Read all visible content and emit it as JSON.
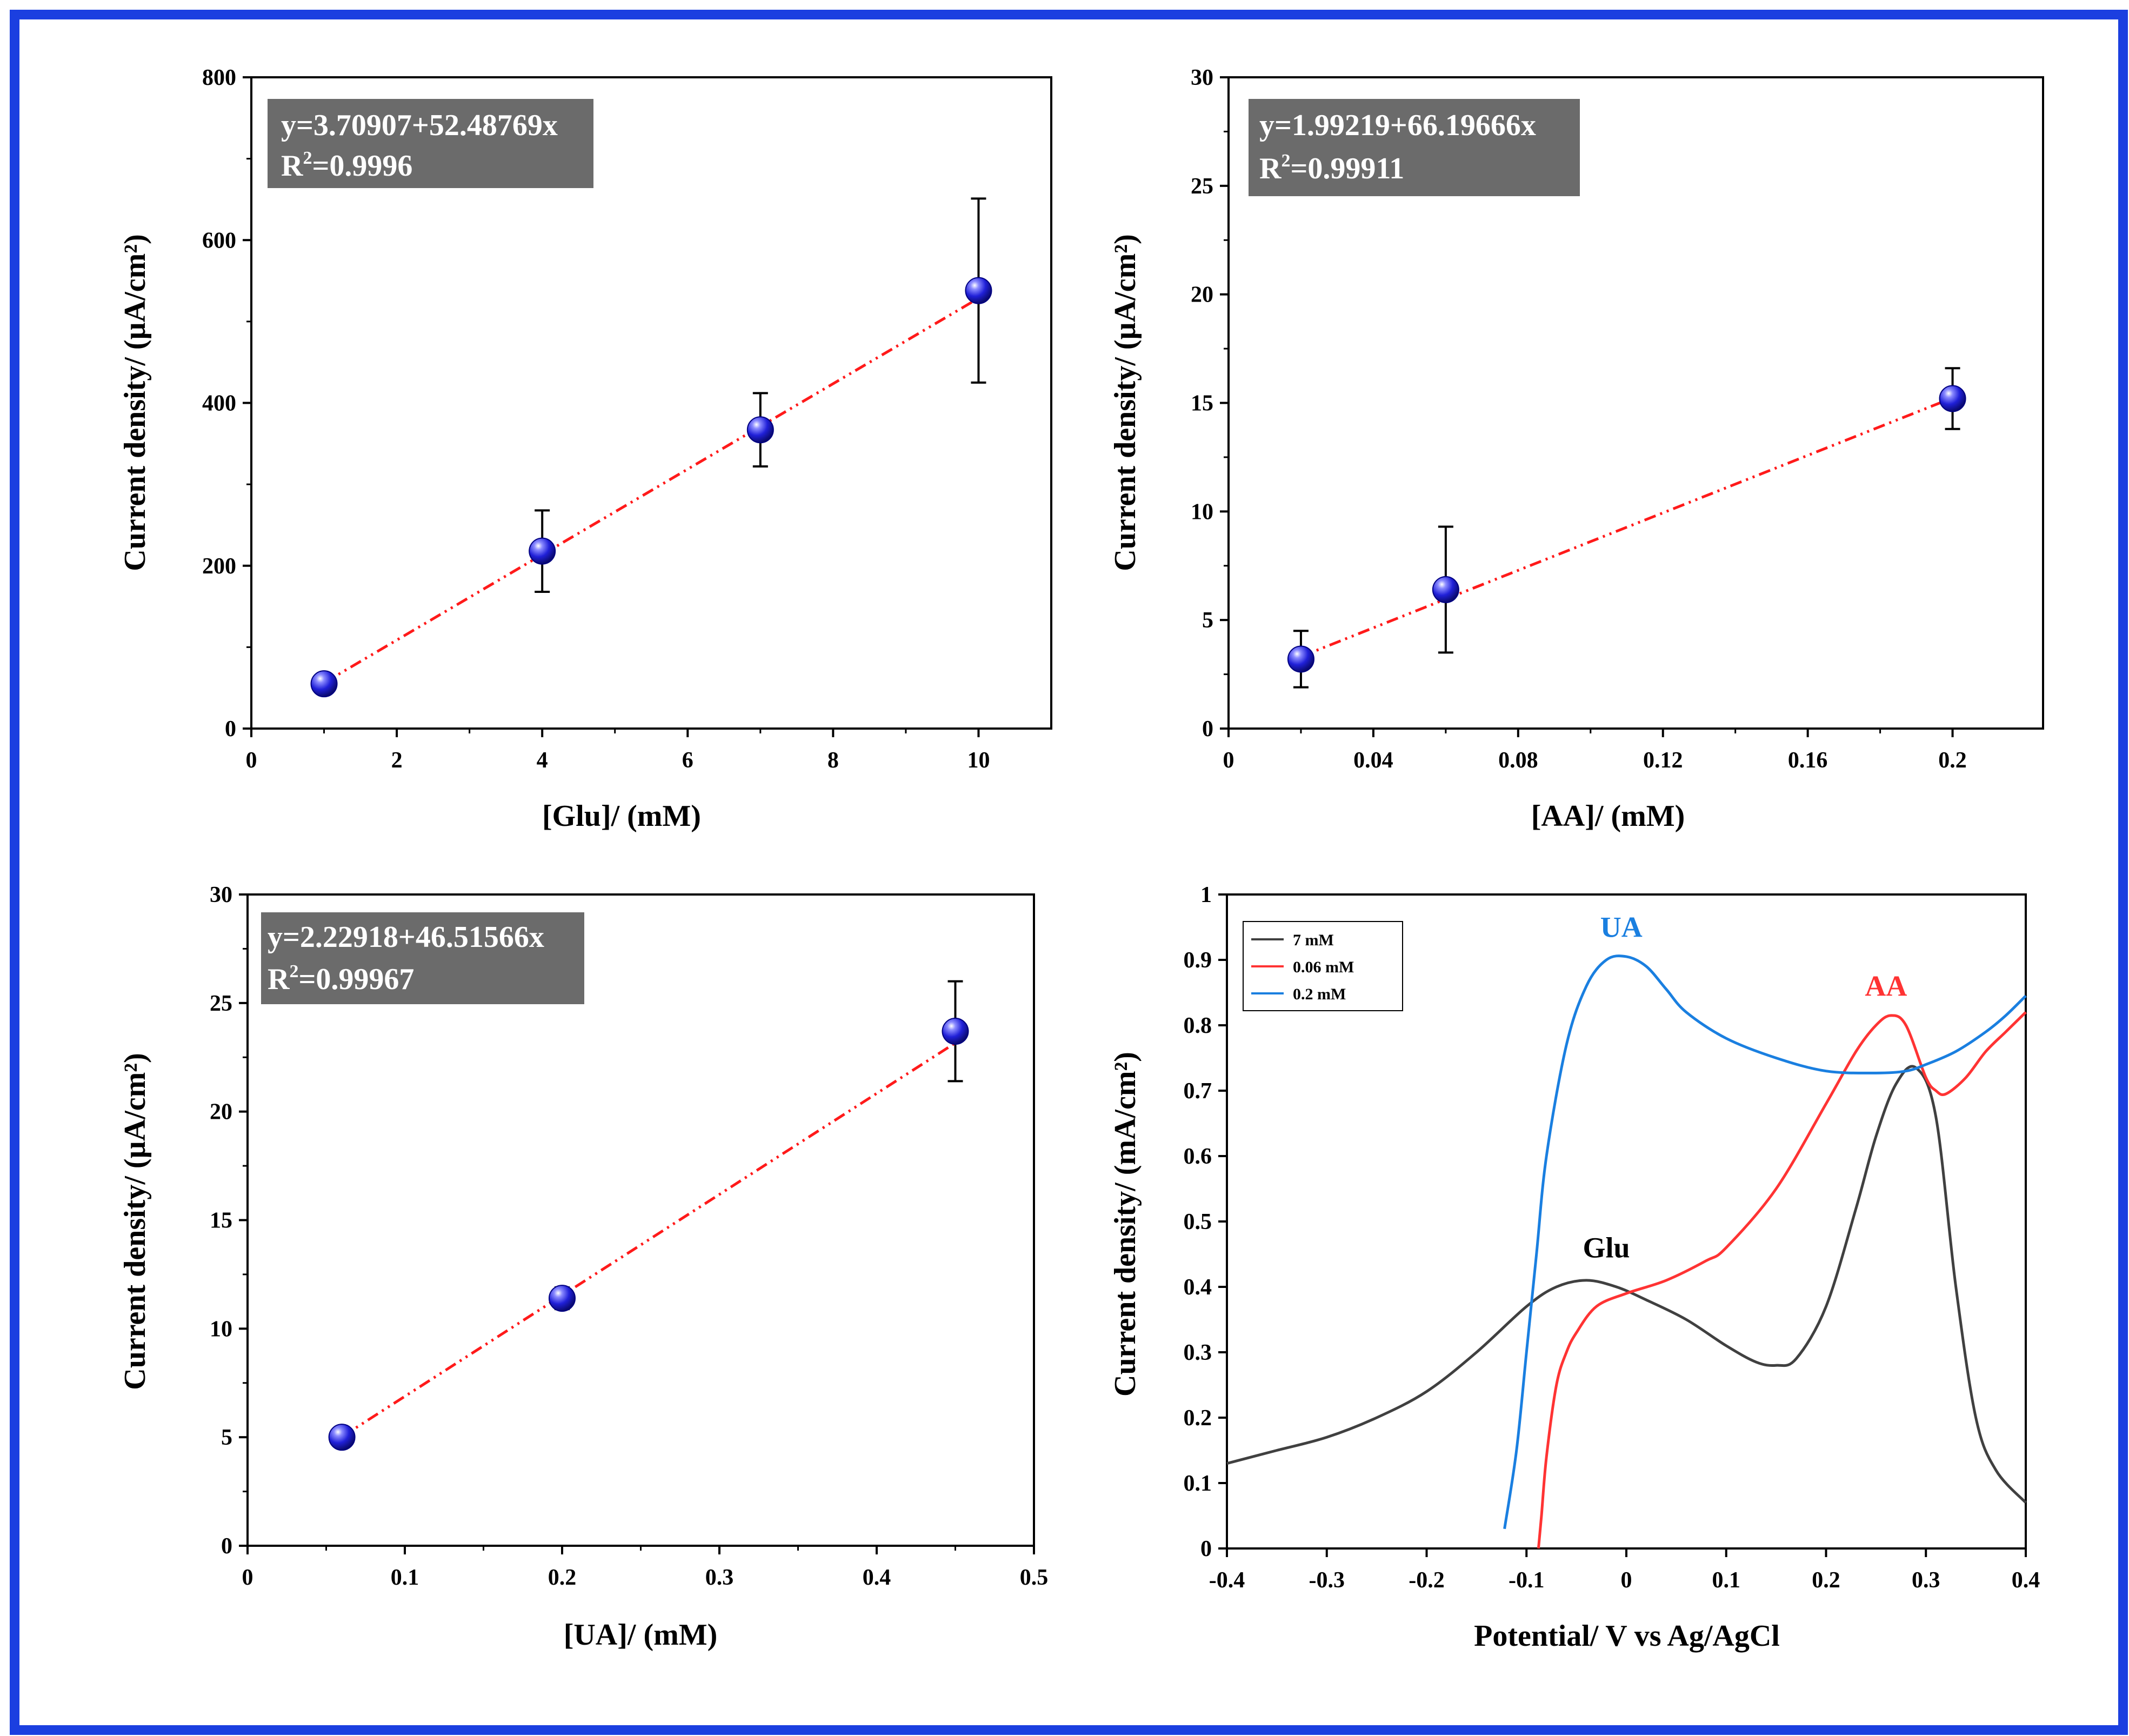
{
  "colors": {
    "frame": "#1b3fe0",
    "fit_line": "#ff1a1a",
    "marker": "#2222dd",
    "equation_box": "#6b6b6b",
    "glu_curve": "#404040",
    "aa_curve": "#ff3333",
    "ua_curve": "#1a7fe0"
  },
  "chart_data": [
    {
      "type": "scatter",
      "id": "glu",
      "xlabel": "[Glu]/ (mM)",
      "ylabel": "Current density/ (µA/cm²)",
      "xlim": [
        0,
        11
      ],
      "ylim": [
        0,
        800
      ],
      "xticks": [
        0,
        2,
        4,
        6,
        8,
        10
      ],
      "xtick_labels": [
        "0",
        "2",
        "4",
        "6",
        "8",
        "10"
      ],
      "yticks": [
        0,
        200,
        400,
        600,
        800
      ],
      "ytick_labels": [
        "0",
        "200",
        "400",
        "600",
        "800"
      ],
      "points": [
        {
          "x": 1,
          "y": 55,
          "err": 10
        },
        {
          "x": 4,
          "y": 218,
          "err": 50
        },
        {
          "x": 7,
          "y": 367,
          "err": 45
        },
        {
          "x": 10,
          "y": 538,
          "err": 113
        }
      ],
      "fit": {
        "intercept": 3.70907,
        "slope": 52.48769,
        "x_range": [
          1,
          10
        ]
      },
      "equation": "y=3.70907+52.48769x",
      "r2_prefix": "R",
      "r2_sup": "2",
      "r2_value": "=0.9996",
      "grid": false
    },
    {
      "type": "scatter",
      "id": "aa",
      "xlabel": "[AA]/ (mM)",
      "ylabel": "Current density/ (µA/cm²)",
      "xlim": [
        0,
        0.225
      ],
      "ylim": [
        0,
        30
      ],
      "xticks": [
        0,
        0.04,
        0.08,
        0.12,
        0.16,
        0.2
      ],
      "xtick_labels": [
        "0",
        "0.04",
        "0.08",
        "0.12",
        "0.16",
        "0.2"
      ],
      "yticks": [
        0,
        5,
        10,
        15,
        20,
        25,
        30
      ],
      "ytick_labels": [
        "0",
        "5",
        "10",
        "15",
        "20",
        "25",
        "30"
      ],
      "points": [
        {
          "x": 0.02,
          "y": 3.2,
          "err": 1.3
        },
        {
          "x": 0.06,
          "y": 6.4,
          "err": 2.9
        },
        {
          "x": 0.2,
          "y": 15.2,
          "err": 1.4
        }
      ],
      "fit": {
        "intercept": 1.99219,
        "slope": 66.19666,
        "x_range": [
          0.02,
          0.2
        ]
      },
      "equation": "y=1.99219+66.19666x",
      "r2_prefix": "R",
      "r2_sup": "2",
      "r2_value": "=0.99911",
      "grid": false
    },
    {
      "type": "scatter",
      "id": "ua",
      "xlabel": "[UA]/ (mM)",
      "ylabel": "Current density/ (µA/cm²)",
      "xlim": [
        0,
        0.5
      ],
      "ylim": [
        0,
        30
      ],
      "xticks": [
        0,
        0.1,
        0.2,
        0.3,
        0.4,
        0.5
      ],
      "xtick_labels": [
        "0",
        "0.1",
        "0.2",
        "0.3",
        "0.4",
        "0.5"
      ],
      "yticks": [
        0,
        5,
        10,
        15,
        20,
        25,
        30
      ],
      "ytick_labels": [
        "0",
        "5",
        "10",
        "15",
        "20",
        "25",
        "30"
      ],
      "points": [
        {
          "x": 0.06,
          "y": 5.0,
          "err": 0.3
        },
        {
          "x": 0.2,
          "y": 11.4,
          "err": 0.5
        },
        {
          "x": 0.45,
          "y": 23.7,
          "err": 2.3
        }
      ],
      "fit": {
        "intercept": 2.22918,
        "slope": 46.51566,
        "x_range": [
          0.06,
          0.45
        ]
      },
      "equation": "y=2.22918+46.51566x",
      "r2_prefix": "R",
      "r2_sup": "2",
      "r2_value": "=0.99967",
      "grid": false
    },
    {
      "type": "line",
      "id": "dpv",
      "xlabel": "Potential/ V vs Ag/AgCl",
      "ylabel": "Current density/ (mA/cm²)",
      "xlim": [
        -0.4,
        0.4
      ],
      "ylim": [
        0,
        1
      ],
      "xticks": [
        -0.4,
        -0.3,
        -0.2,
        -0.1,
        0,
        0.1,
        0.2,
        0.3,
        0.4
      ],
      "xtick_labels": [
        "-0.4",
        "-0.3",
        "-0.2",
        "-0.1",
        "0",
        "0.1",
        "0.2",
        "0.3",
        "0.4"
      ],
      "yticks": [
        0,
        0.1,
        0.2,
        0.3,
        0.4,
        0.5,
        0.6,
        0.7,
        0.8,
        0.9,
        1
      ],
      "ytick_labels": [
        "0",
        "0.1",
        "0.2",
        "0.3",
        "0.4",
        "0.5",
        "0.6",
        "0.7",
        "0.8",
        "0.9",
        "1"
      ],
      "legend_position": "top-left",
      "series": [
        {
          "name": "7 mM",
          "x": [
            -0.4,
            -0.35,
            -0.3,
            -0.25,
            -0.2,
            -0.15,
            -0.1,
            -0.07,
            -0.04,
            -0.01,
            0.02,
            0.06,
            0.1,
            0.13,
            0.15,
            0.17,
            0.2,
            0.23,
            0.25,
            0.27,
            0.29,
            0.31,
            0.33,
            0.35,
            0.37,
            0.4
          ],
          "y": [
            0.13,
            0.15,
            0.17,
            0.2,
            0.24,
            0.3,
            0.37,
            0.4,
            0.41,
            0.4,
            0.38,
            0.35,
            0.31,
            0.285,
            0.28,
            0.29,
            0.37,
            0.52,
            0.63,
            0.71,
            0.735,
            0.66,
            0.4,
            0.2,
            0.12,
            0.07
          ]
        },
        {
          "name": "0.06 mM",
          "x": [
            -0.088,
            -0.085,
            -0.08,
            -0.07,
            -0.06,
            -0.05,
            -0.03,
            0,
            0.04,
            0.08,
            0.1,
            0.15,
            0.2,
            0.23,
            0.25,
            0.265,
            0.28,
            0.3,
            0.31,
            0.32,
            0.34,
            0.36,
            0.38,
            0.4
          ],
          "y": [
            0.0,
            0.05,
            0.14,
            0.25,
            0.3,
            0.33,
            0.37,
            0.39,
            0.41,
            0.44,
            0.46,
            0.55,
            0.68,
            0.76,
            0.8,
            0.815,
            0.8,
            0.72,
            0.7,
            0.695,
            0.72,
            0.76,
            0.79,
            0.82
          ]
        },
        {
          "name": "0.2 mM",
          "x": [
            -0.122,
            -0.11,
            -0.1,
            -0.09,
            -0.08,
            -0.06,
            -0.04,
            -0.02,
            0,
            0.02,
            0.04,
            0.06,
            0.1,
            0.15,
            0.2,
            0.25,
            0.28,
            0.3,
            0.33,
            0.36,
            0.38,
            0.4
          ],
          "y": [
            0.03,
            0.15,
            0.3,
            0.45,
            0.6,
            0.77,
            0.86,
            0.9,
            0.905,
            0.89,
            0.855,
            0.82,
            0.78,
            0.75,
            0.73,
            0.727,
            0.73,
            0.74,
            0.76,
            0.79,
            0.815,
            0.845
          ]
        }
      ],
      "peak_labels": [
        {
          "text": "Glu",
          "x": -0.02,
          "y": 0.445
        },
        {
          "text": "UA",
          "x": -0.005,
          "y": 0.935
        },
        {
          "text": "AA",
          "x": 0.26,
          "y": 0.845
        }
      ]
    }
  ]
}
